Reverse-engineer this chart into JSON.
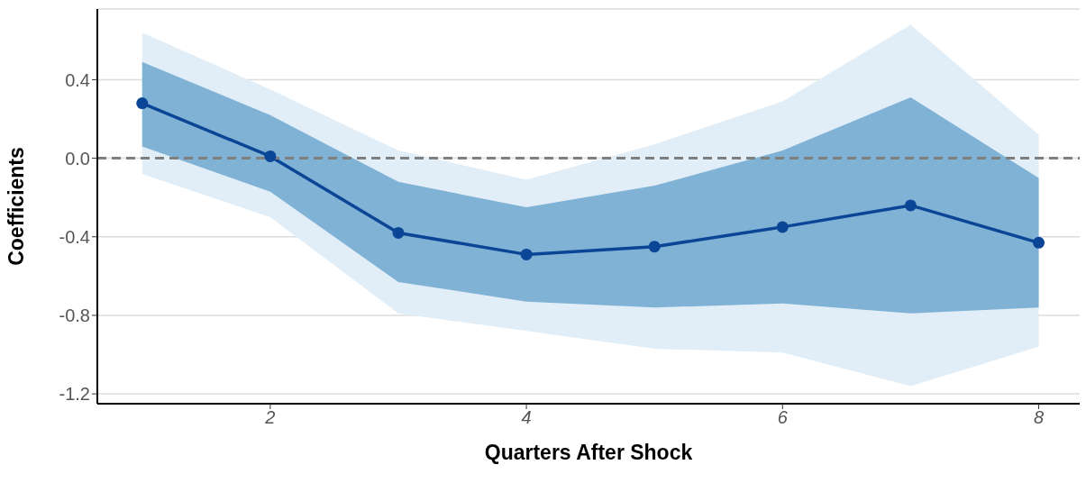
{
  "chart_data": {
    "type": "line",
    "xlabel": "Quarters After Shock",
    "ylabel": "Coefficients",
    "x": [
      1,
      2,
      3,
      4,
      5,
      6,
      7,
      8
    ],
    "series": [
      {
        "color": "#e1eef7",
        "values": [
          null,
          null,
          null,
          null,
          null,
          null,
          null,
          null
        ],
        "lower": [
          -0.08,
          -0.3,
          -0.79,
          -0.88,
          -0.97,
          -0.99,
          -1.16,
          -0.96
        ],
        "upper": [
          0.64,
          0.35,
          0.04,
          -0.11,
          0.07,
          0.29,
          0.68,
          0.12
        ]
      },
      {
        "color": "#80b2d6",
        "values": [
          null,
          null,
          null,
          null,
          null,
          null,
          null,
          null
        ],
        "lower": [
          0.06,
          -0.17,
          -0.63,
          -0.73,
          -0.76,
          -0.74,
          -0.79,
          -0.76
        ],
        "upper": [
          0.49,
          0.22,
          -0.12,
          -0.25,
          -0.14,
          0.04,
          0.31,
          -0.1
        ]
      },
      {
        "color": "#0b4596",
        "values": [
          0.28,
          0.01,
          -0.38,
          -0.49,
          -0.45,
          -0.35,
          -0.24,
          -0.43
        ]
      }
    ],
    "xlim": [
      0.65,
      8.32
    ],
    "xticks": [
      2,
      4,
      6,
      8
    ],
    "ylim": [
      -1.25,
      0.76
    ],
    "yticks": [
      -1.2,
      -0.8,
      -0.4,
      {
        "value": 0,
        "label": "0.0"
      },
      0.4
    ],
    "grid": "y",
    "marker": "circle",
    "line_style": "solid",
    "ref_lines": [
      {
        "axis": "y",
        "value": 0,
        "color": "#7f7f7f",
        "line_style": "dashed"
      }
    ]
  }
}
